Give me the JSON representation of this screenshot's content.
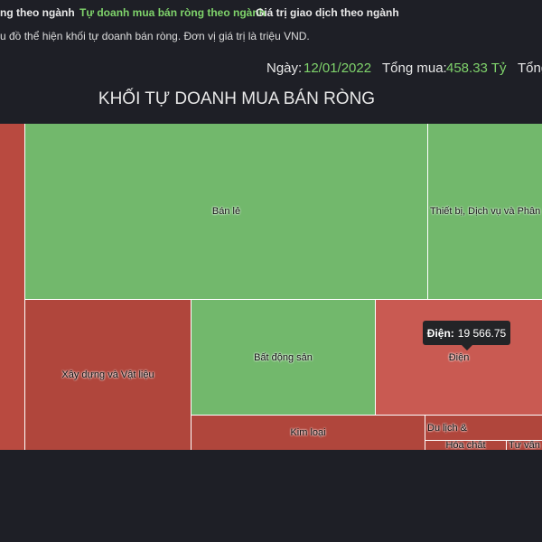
{
  "tabs": [
    "ng theo ngành",
    "Tự doanh mua bán ròng theo ngành",
    "Giá trị giao dịch theo ngành"
  ],
  "description": "u đồ thể hiện khối tự doanh bán ròng. Đơn vị giá trị là triệu VND.",
  "header": {
    "date_label": "Ngày:",
    "date": "12/01/2022",
    "buy_label": "Tổng mua:",
    "buy": "458.33 Tỷ",
    "next_label": "Tổng"
  },
  "chart_title": "KHỐI TỰ DOANH MUA BÁN RÒNG",
  "cells": [
    "Bán lẻ",
    "Thiết bị, Dịch vụ và Phân p",
    "Xây dựng và Vật liệu",
    "Bất động sản",
    "Điện",
    "Kim loại",
    "Du lịch &",
    "Hóa chất",
    "Tư vấn"
  ],
  "tooltip": {
    "label": "Điện:",
    "value": "19 566.75"
  }
}
